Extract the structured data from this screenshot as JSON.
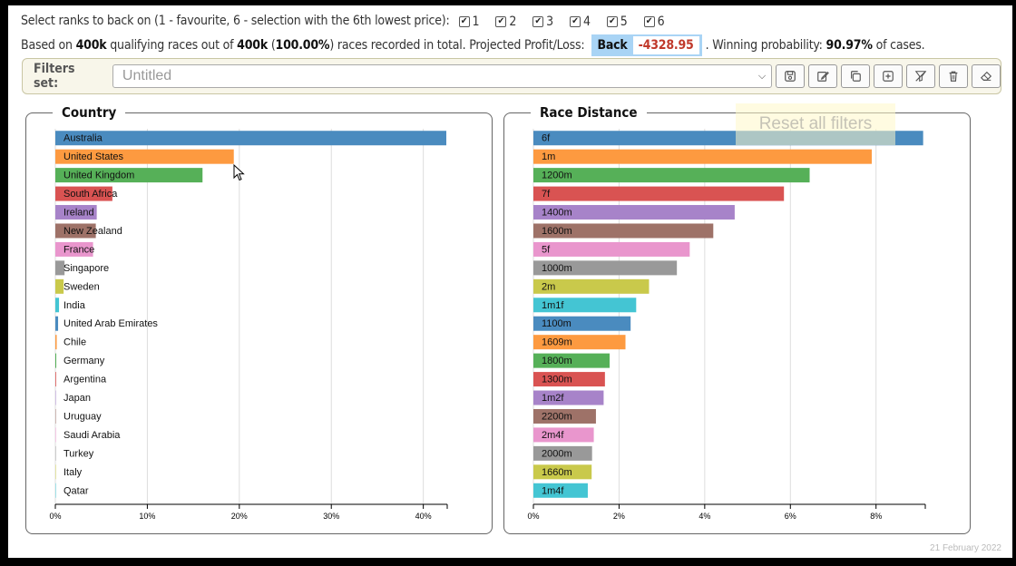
{
  "rank_selector": {
    "prompt": "Select ranks to back on (1 - favourite, 6 - selection with the 6th lowest price):",
    "ranks": [
      {
        "label": "1",
        "checked": true
      },
      {
        "label": "2",
        "checked": true
      },
      {
        "label": "3",
        "checked": true
      },
      {
        "label": "4",
        "checked": true
      },
      {
        "label": "5",
        "checked": true
      },
      {
        "label": "6",
        "checked": true
      }
    ]
  },
  "summary": {
    "t1": "Based on ",
    "qualifying": "400k",
    "t2": " qualifying races out of ",
    "total": "400k",
    "t3": " (",
    "pct": "100.00%",
    "t4": ") races recorded in total. Projected Profit/Loss:",
    "bet_type": "Back",
    "profit_loss": "-4328.95",
    "t5": ". Winning probability: ",
    "win_prob": "90.97%",
    "t6": " of cases."
  },
  "filters": {
    "label": "Filters set:",
    "selected": "Untitled",
    "buttons": [
      "save-icon",
      "edit-icon",
      "copy-icon",
      "add-icon",
      "clear-filter-icon",
      "delete-icon",
      "eraser-icon"
    ]
  },
  "tooltip": "Reset all filters",
  "footer_date": "21 February 2022",
  "chart_data": [
    {
      "type": "bar",
      "title": "Country",
      "orientation": "horizontal",
      "categories": [
        "Australia",
        "United States",
        "United Kingdom",
        "South Africa",
        "Ireland",
        "New Zealand",
        "France",
        "Singapore",
        "Sweden",
        "India",
        "United Arab Emirates",
        "Chile",
        "Germany",
        "Argentina",
        "Japan",
        "Uruguay",
        "Saudi Arabia",
        "Turkey",
        "Italy",
        "Qatar"
      ],
      "values": [
        42.5,
        19.4,
        16.0,
        6.2,
        4.5,
        4.4,
        4.1,
        1.0,
        0.9,
        0.4,
        0.3,
        0.15,
        0.1,
        0.08,
        0.05,
        0.04,
        0.03,
        0.03,
        0.02,
        0.02
      ],
      "colors": [
        "#4a8bbf",
        "#fd9a40",
        "#56b058",
        "#d95352",
        "#a783c9",
        "#9e7268",
        "#e996cd",
        "#999999",
        "#c9c94b",
        "#44c5d3",
        "#4a8bbf",
        "#fd9a40",
        "#56b058",
        "#d95352",
        "#a783c9",
        "#9e7268",
        "#e996cd",
        "#999999",
        "#c9c94b",
        "#44c5d3"
      ],
      "xticks": [
        "0%",
        "10%",
        "20%",
        "30%",
        "40%"
      ],
      "xlim": [
        0,
        42.6
      ],
      "grid": true
    },
    {
      "type": "bar",
      "title": "Race Distance",
      "orientation": "horizontal",
      "categories": [
        "6f",
        "1m",
        "1200m",
        "7f",
        "1400m",
        "1600m",
        "5f",
        "1000m",
        "2m",
        "1m1f",
        "1100m",
        "1609m",
        "1800m",
        "1300m",
        "1m2f",
        "2200m",
        "2m4f",
        "2000m",
        "1660m",
        "1m4f"
      ],
      "values": [
        9.1,
        7.9,
        6.45,
        5.85,
        4.7,
        4.2,
        3.65,
        3.35,
        2.7,
        2.4,
        2.27,
        2.15,
        1.78,
        1.67,
        1.64,
        1.46,
        1.41,
        1.37,
        1.36,
        1.27
      ],
      "colors": [
        "#4a8bbf",
        "#fd9a40",
        "#56b058",
        "#d95352",
        "#a783c9",
        "#9e7268",
        "#e996cd",
        "#999999",
        "#c9c94b",
        "#44c5d3",
        "#4a8bbf",
        "#fd9a40",
        "#56b058",
        "#d95352",
        "#a783c9",
        "#9e7268",
        "#e996cd",
        "#999999",
        "#c9c94b",
        "#44c5d3"
      ],
      "xticks": [
        "0%",
        "2%",
        "4%",
        "6%",
        "8%"
      ],
      "xlim": [
        0,
        9.15
      ],
      "grid": true
    }
  ]
}
